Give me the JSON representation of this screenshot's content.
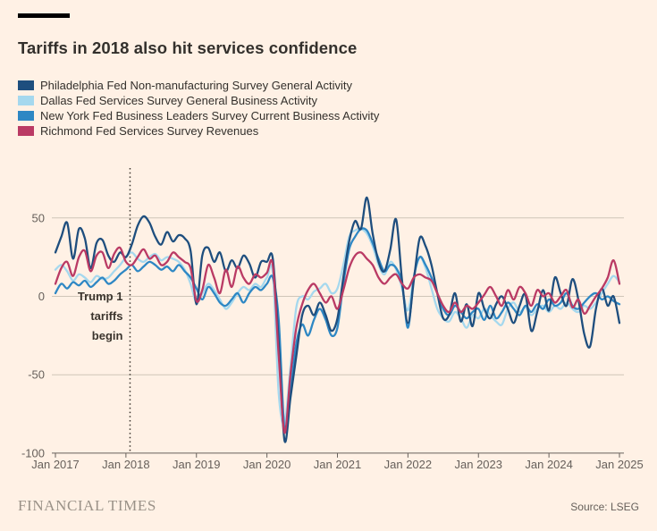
{
  "header": {
    "title": "Tariffs in 2018 also hit services confidence"
  },
  "theme": {
    "background": "#FFF1E5",
    "text": "#33302c",
    "muted": "#66605b"
  },
  "footer": {
    "brand": "FINANCIAL TIMES",
    "source": "Source: LSEG"
  },
  "chart_data": {
    "type": "line",
    "title": "Tariffs in 2018 also hit services confidence",
    "x_start": "Jan 2017",
    "x_end": "Jan 2025",
    "x_interval": "monthly",
    "x_tick_labels": [
      "Jan 2017",
      "Jan 2018",
      "Jan 2019",
      "Jan 2020",
      "Jan 2021",
      "Jan 2022",
      "Jan 2023",
      "Jan 2024",
      "Jan 2025"
    ],
    "y_ticks": [
      50,
      0,
      -50,
      -100
    ],
    "ylim": [
      -100,
      82
    ],
    "grid": "horizontal",
    "legend_position": "top-left",
    "event_line": {
      "label_lines": [
        "Trump 1",
        "tariffs",
        "begin"
      ],
      "month_index": 12.7
    },
    "series": [
      {
        "id": "philadelphia",
        "name": "Philadelphia Fed Non-manufacturing Survey General Activity",
        "color": "#1e4e7e",
        "values": [
          28,
          38,
          47,
          24,
          43,
          37,
          18,
          34,
          36,
          26,
          22,
          28,
          25,
          33,
          45,
          51,
          47,
          38,
          33,
          41,
          35,
          39,
          37,
          29,
          -5,
          26,
          31,
          22,
          28,
          16,
          23,
          18,
          26,
          21,
          12,
          22,
          22,
          24,
          -30,
          -92,
          -65,
          -38,
          -12,
          -6,
          -12,
          -4,
          -12,
          -22,
          -14,
          12,
          35,
          48,
          43,
          63,
          40,
          22,
          16,
          30,
          49,
          10,
          -17,
          10,
          37,
          32,
          20,
          2,
          -14,
          -12,
          2,
          -16,
          -5,
          -19,
          2,
          -8,
          -14,
          -5,
          0,
          -8,
          -17,
          -6,
          1,
          -22,
          -10,
          4,
          -9,
          12,
          2,
          -6,
          11,
          -2,
          -24,
          -32,
          -8,
          5,
          -6,
          0,
          -17
        ]
      },
      {
        "id": "dallas",
        "name": "Dallas Fed Services Survey General Business Activity",
        "color": "#a5d8ee",
        "values": [
          17,
          20,
          16,
          10,
          14,
          12,
          9,
          13,
          11,
          12,
          16,
          20,
          25,
          28,
          24,
          22,
          25,
          27,
          23,
          25,
          24,
          22,
          17,
          8,
          -4,
          2,
          8,
          4,
          -2,
          -8,
          -4,
          2,
          6,
          4,
          8,
          6,
          12,
          15,
          -62,
          -81,
          -45,
          -7,
          0,
          -2,
          3,
          5,
          8,
          2,
          5,
          20,
          38,
          42,
          43,
          40,
          32,
          20,
          14,
          22,
          17,
          5,
          -9,
          12,
          25,
          18,
          5,
          -8,
          -14,
          -16,
          -10,
          -14,
          -20,
          -12,
          -14,
          -8,
          -12,
          -16,
          -18,
          -8,
          -4,
          -10,
          -7,
          -12,
          -8,
          -6,
          -10,
          -6,
          -8,
          -4,
          -8,
          -10,
          -6,
          -8,
          -4,
          2,
          8,
          13,
          9
        ]
      },
      {
        "id": "new-york",
        "name": "New York Fed Business Leaders Survey Current Business Activity",
        "color": "#2e87c4",
        "values": [
          2,
          8,
          5,
          9,
          7,
          10,
          6,
          9,
          12,
          8,
          10,
          14,
          17,
          20,
          16,
          19,
          22,
          20,
          17,
          19,
          16,
          20,
          16,
          12,
          5,
          -2,
          6,
          2,
          -4,
          -6,
          -2,
          2,
          -4,
          2,
          6,
          4,
          8,
          12,
          -15,
          -85,
          -60,
          -30,
          -18,
          -25,
          -15,
          -8,
          -15,
          -25,
          -20,
          8,
          30,
          38,
          43,
          42,
          34,
          24,
          16,
          20,
          18,
          8,
          -20,
          12,
          25,
          20,
          12,
          2,
          -8,
          -12,
          -6,
          -10,
          -14,
          -10,
          -8,
          -15,
          -6,
          -14,
          -10,
          -4,
          -8,
          -12,
          -6,
          -10,
          -5,
          -8,
          -2,
          -6,
          -4,
          2,
          -6,
          -8,
          -4,
          0,
          2,
          -2,
          0,
          -3,
          -5
        ]
      },
      {
        "id": "richmond",
        "name": "Richmond Fed Services Survey Revenues",
        "color": "#ba3a64",
        "values": [
          8,
          18,
          22,
          13,
          25,
          29,
          16,
          26,
          28,
          18,
          27,
          31,
          22,
          20,
          25,
          30,
          24,
          26,
          20,
          22,
          28,
          25,
          22,
          18,
          -3,
          4,
          20,
          12,
          2,
          17,
          6,
          19,
          12,
          8,
          14,
          12,
          15,
          20,
          -38,
          -87,
          -50,
          -20,
          -5,
          4,
          8,
          2,
          -4,
          0,
          -8,
          4,
          18,
          26,
          28,
          24,
          20,
          12,
          8,
          12,
          14,
          8,
          5,
          12,
          14,
          12,
          10,
          2,
          -6,
          -10,
          -4,
          -10,
          -6,
          -8,
          -4,
          1,
          6,
          0,
          -6,
          4,
          -2,
          6,
          2,
          -6,
          4,
          0,
          2,
          -4,
          0,
          4,
          -7,
          -2,
          -11,
          -6,
          0,
          5,
          12,
          23,
          8
        ]
      }
    ]
  }
}
